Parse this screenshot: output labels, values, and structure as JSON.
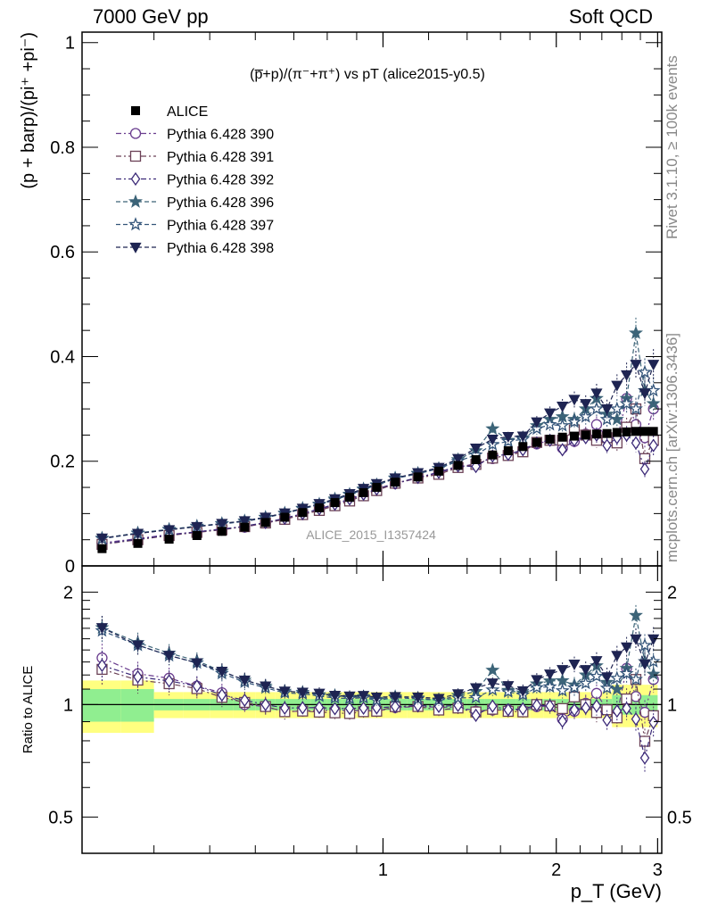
{
  "header": {
    "left": "7000 GeV pp",
    "right": "Soft QCD"
  },
  "side_labels": {
    "top": "Rivet 3.1.10, ≥ 100k events",
    "bottom": "mcplots.cern.ch [arXiv:1306.3436]"
  },
  "chart_data": {
    "type": "scatter",
    "title": "(p̅+p)/(π⁻+π⁺) vs pT (alice2015-y0.5)",
    "watermark": "ALICE_2015_I1357424",
    "xlabel": "p_T (GeV)",
    "ylabel": "(p + barp)/(pi⁺ +pi⁻)",
    "ratio_ylabel": "Ratio to ALICE",
    "x_scale": "log",
    "xlim": [
      0.3,
      3.05
    ],
    "ylim": [
      0,
      1.02
    ],
    "ratio_ylim": [
      0.4,
      2.35
    ],
    "x_ticks": [
      "1",
      "2",
      "3"
    ],
    "y_ticks": [
      "0",
      "0.2",
      "0.4",
      "0.6",
      "0.8",
      "1"
    ],
    "ratio_ticks": [
      "0.5",
      "1",
      "2"
    ],
    "legend_position": "top-left",
    "x": [
      0.325,
      0.375,
      0.425,
      0.475,
      0.525,
      0.575,
      0.625,
      0.675,
      0.725,
      0.775,
      0.825,
      0.875,
      0.925,
      0.975,
      1.05,
      1.15,
      1.25,
      1.35,
      1.45,
      1.55,
      1.65,
      1.75,
      1.85,
      1.95,
      2.05,
      2.15,
      2.25,
      2.35,
      2.45,
      2.55,
      2.65,
      2.75,
      2.85,
      2.95
    ],
    "data": {
      "name": "ALICE",
      "values": [
        0.033,
        0.043,
        0.051,
        0.058,
        0.066,
        0.074,
        0.083,
        0.093,
        0.102,
        0.111,
        0.121,
        0.131,
        0.14,
        0.15,
        0.16,
        0.17,
        0.181,
        0.192,
        0.203,
        0.212,
        0.22,
        0.228,
        0.236,
        0.242,
        0.246,
        0.248,
        0.25,
        0.252,
        0.253,
        0.255,
        0.256,
        0.257,
        0.257,
        0.257
      ]
    },
    "series": [
      {
        "name": "Pythia 6.428 390",
        "marker": "circle-open",
        "color": "#6a3d8f",
        "values": [
          0.044,
          0.052,
          0.06,
          0.065,
          0.071,
          0.074,
          0.082,
          0.089,
          0.098,
          0.107,
          0.117,
          0.126,
          0.135,
          0.144,
          0.157,
          0.168,
          0.178,
          0.189,
          0.195,
          0.205,
          0.213,
          0.22,
          0.233,
          0.24,
          0.225,
          0.238,
          0.252,
          0.27,
          0.245,
          0.24,
          0.32,
          0.27,
          0.245,
          0.3
        ]
      },
      {
        "name": "Pythia 6.428 391",
        "marker": "square-open",
        "color": "#6b4156",
        "values": [
          0.041,
          0.05,
          0.058,
          0.064,
          0.069,
          0.075,
          0.082,
          0.089,
          0.098,
          0.106,
          0.115,
          0.124,
          0.134,
          0.144,
          0.158,
          0.168,
          0.175,
          0.188,
          0.194,
          0.206,
          0.211,
          0.218,
          0.236,
          0.24,
          0.24,
          0.26,
          0.25,
          0.24,
          0.245,
          0.235,
          0.265,
          0.3,
          0.205,
          0.24
        ]
      },
      {
        "name": "Pythia 6.428 392",
        "marker": "diamond-open",
        "color": "#3c2a78",
        "values": [
          0.042,
          0.051,
          0.059,
          0.065,
          0.07,
          0.076,
          0.083,
          0.091,
          0.1,
          0.109,
          0.118,
          0.128,
          0.137,
          0.147,
          0.158,
          0.169,
          0.179,
          0.191,
          0.19,
          0.21,
          0.213,
          0.222,
          0.235,
          0.24,
          0.222,
          0.24,
          0.245,
          0.25,
          0.23,
          0.245,
          0.25,
          0.235,
          0.185,
          0.23
        ]
      },
      {
        "name": "Pythia 6.428 396",
        "marker": "star-filled",
        "color": "#3c6478",
        "values": [
          0.053,
          0.063,
          0.07,
          0.076,
          0.081,
          0.086,
          0.093,
          0.101,
          0.11,
          0.118,
          0.128,
          0.137,
          0.147,
          0.155,
          0.168,
          0.177,
          0.186,
          0.203,
          0.22,
          0.262,
          0.24,
          0.245,
          0.268,
          0.28,
          0.285,
          0.28,
          0.3,
          0.32,
          0.29,
          0.28,
          0.32,
          0.445,
          0.335,
          0.31
        ]
      },
      {
        "name": "Pythia 6.428 397",
        "marker": "star-open",
        "color": "#34557a",
        "values": [
          0.052,
          0.062,
          0.069,
          0.075,
          0.08,
          0.085,
          0.092,
          0.1,
          0.109,
          0.117,
          0.126,
          0.136,
          0.146,
          0.154,
          0.167,
          0.176,
          0.186,
          0.2,
          0.212,
          0.232,
          0.238,
          0.242,
          0.262,
          0.27,
          0.268,
          0.275,
          0.285,
          0.3,
          0.28,
          0.3,
          0.31,
          0.3,
          0.37,
          0.335
        ]
      },
      {
        "name": "Pythia 6.428 398",
        "marker": "triangle-down-filled",
        "color": "#1e2452",
        "values": [
          0.053,
          0.062,
          0.069,
          0.075,
          0.081,
          0.086,
          0.093,
          0.101,
          0.11,
          0.119,
          0.128,
          0.138,
          0.148,
          0.157,
          0.168,
          0.178,
          0.188,
          0.205,
          0.225,
          0.242,
          0.247,
          0.248,
          0.275,
          0.292,
          0.305,
          0.318,
          0.31,
          0.33,
          0.3,
          0.345,
          0.365,
          0.385,
          0.33,
          0.385
        ]
      }
    ],
    "colors": {
      "band_inner": "#90ee90",
      "band_outer": "#ffff80",
      "data": "#000000"
    }
  }
}
